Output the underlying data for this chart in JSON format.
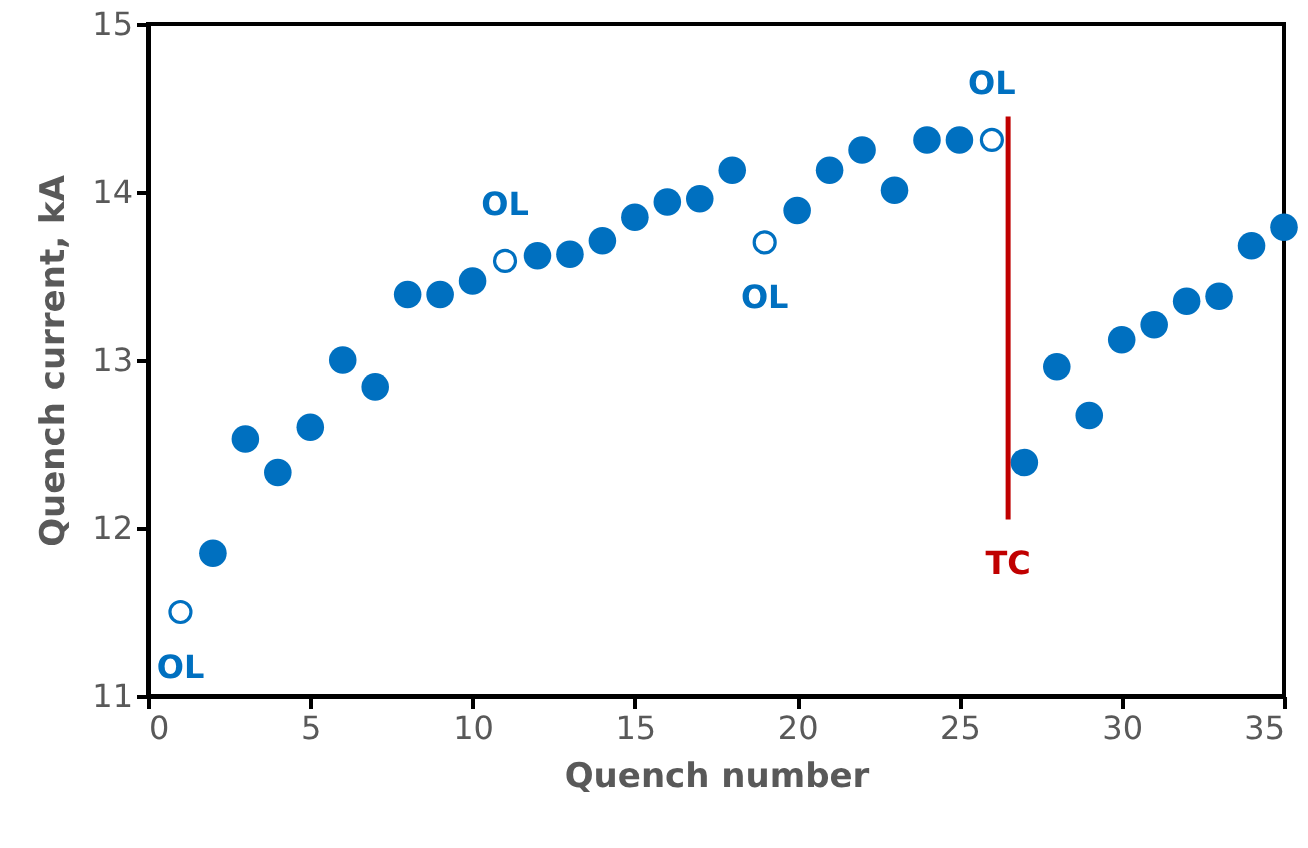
{
  "chart_data": {
    "type": "scatter",
    "xlabel": "Quench number",
    "ylabel": "Quench current, kA",
    "series": [
      {
        "color": "#0070c0",
        "marker": "circle",
        "x": [
          2,
          3,
          4,
          5,
          6,
          7,
          8,
          9,
          10,
          12,
          13,
          14,
          15,
          16,
          17,
          18,
          20,
          21,
          22,
          23,
          24,
          25,
          27,
          28,
          29,
          30,
          31,
          32,
          33,
          34,
          35
        ],
        "values": [
          11.85,
          12.53,
          12.33,
          12.6,
          13.0,
          12.84,
          13.39,
          13.39,
          13.47,
          13.62,
          13.63,
          13.71,
          13.85,
          13.94,
          13.96,
          14.13,
          13.89,
          14.13,
          14.25,
          14.01,
          14.31,
          14.31,
          12.39,
          12.96,
          12.67,
          13.12,
          13.21,
          13.35,
          13.38,
          13.68,
          13.79
        ]
      },
      {
        "color": "#0070c0",
        "marker": "circle",
        "x": [
          1,
          11,
          19,
          26
        ],
        "values": [
          11.5,
          13.59,
          13.7,
          14.31
        ]
      },
      {
        "type": "line",
        "color": "#c00000",
        "x": [
          26.5,
          26.5
        ],
        "values": [
          12.05,
          14.45
        ]
      }
    ],
    "annotations": [
      {
        "text": "OL",
        "x": 1,
        "y": 11.5
      },
      {
        "text": "OL",
        "x": 11,
        "y": 13.59
      },
      {
        "text": "OL",
        "x": 19,
        "y": 13.7
      },
      {
        "text": "OL",
        "x": 26,
        "y": 14.31
      },
      {
        "text": "TC",
        "x": 26.5,
        "y": 12.05
      }
    ],
    "xlim": [
      0,
      35
    ],
    "xticks": [
      0,
      5,
      10,
      15,
      20,
      25,
      30,
      35
    ],
    "ylim": [
      11,
      15
    ],
    "yticks": [
      11,
      12,
      13,
      14,
      15
    ],
    "grid": false
  }
}
